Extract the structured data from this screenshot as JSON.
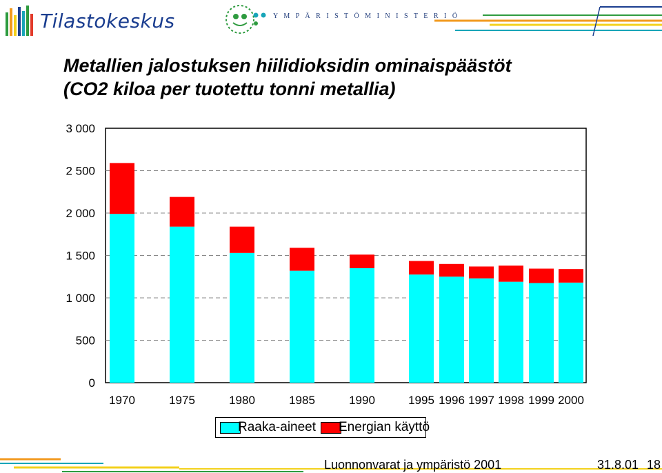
{
  "header": {
    "logo_name": "Tilastokeskus",
    "ministry_name": "Y M P Ä R I S T Ö M I N I S T E R I Ö",
    "colors": {
      "blue": "#1a3d8f",
      "green": "#2e9b3f",
      "orange": "#f29a1f",
      "yellow": "#f3d11c",
      "teal": "#18a5b8"
    }
  },
  "title": {
    "line1": "Metallien jalostuksen hiilidioksidin ominaispäästöt",
    "line2": "(CO2 kiloa per tuotettu tonni metallia)"
  },
  "chart_data": {
    "type": "bar",
    "stacked": true,
    "categories": [
      "1970",
      "1975",
      "1980",
      "1985",
      "1990",
      "1995",
      "1996",
      "1997",
      "1998",
      "1999",
      "2000"
    ],
    "series": [
      {
        "name": "Raaka-aineet",
        "color": "#00ffff",
        "values": [
          1990,
          1840,
          1530,
          1320,
          1350,
          1275,
          1250,
          1230,
          1190,
          1175,
          1180
        ]
      },
      {
        "name": "Energian käyttö",
        "color": "#ff0000",
        "values": [
          600,
          350,
          310,
          270,
          160,
          160,
          150,
          140,
          190,
          170,
          160
        ]
      }
    ],
    "yticks": [
      "0",
      "500",
      "1 000",
      "1 500",
      "2 000",
      "2 500",
      "3 000"
    ],
    "ylim": [
      0,
      3000
    ],
    "grid": "dashed horizontal",
    "legend": "bottom"
  },
  "footer": {
    "text": "Luonnonvarat ja ympäristö 2001",
    "date": "31.8.01",
    "page": "18"
  }
}
